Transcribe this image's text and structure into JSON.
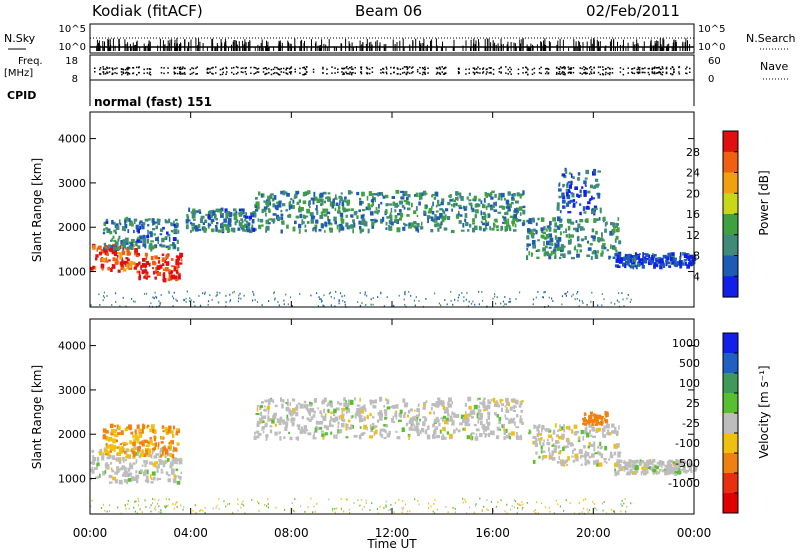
{
  "header": {
    "station": "Kodiak (fitACF)",
    "beam": "Beam 06",
    "date": "02/Feb/2011"
  },
  "top_panels": {
    "nsky_label": "N.Sky",
    "nsky_ticks": [
      "10^5",
      "10^0"
    ],
    "nsearch_label": "N.Search",
    "freq_label_1": "Freq.",
    "freq_label_2": "[MHz]",
    "freq_ticks": [
      "18",
      "8"
    ],
    "nave_label": "Nave",
    "nave_ticks": [
      "60",
      "0"
    ],
    "cpid_label": "CPID",
    "cpid_value": "normal (fast) 151"
  },
  "colors": {
    "power": [
      "#1020e8",
      "#1e5bb4",
      "#3f8a78",
      "#40a040",
      "#c8d818",
      "#f0a010",
      "#ef6010",
      "#e01010"
    ],
    "velocity": [
      "#1020e8",
      "#2060c0",
      "#3f9a5a",
      "#58c030",
      "#bdbdbd",
      "#f0c010",
      "#f08010",
      "#e83010",
      "#e00000"
    ]
  },
  "chart_data": [
    {
      "type": "heatmap",
      "name": "power",
      "xlabel": "Time UT",
      "ylabel": "Slant Range [km]",
      "xlim": [
        0,
        24
      ],
      "ylim": [
        200,
        4600
      ],
      "x_ticks": [
        "00:00",
        "04:00",
        "08:00",
        "12:00",
        "16:00",
        "20:00",
        "00:00"
      ],
      "y_ticks": [
        1000,
        2000,
        3000,
        4000
      ],
      "colorbar_label": "Power [dB]",
      "colorbar_ticks": [
        4,
        8,
        12,
        16,
        20,
        24,
        28
      ],
      "clim": [
        0,
        30
      ],
      "echo_bands": [
        {
          "t_start": 0.0,
          "t_end": 1.8,
          "range_low": 1000,
          "range_high": 1600,
          "power": 26
        },
        {
          "t_start": 1.8,
          "t_end": 3.6,
          "range_low": 800,
          "range_high": 1400,
          "power": 28
        },
        {
          "t_start": 0.5,
          "t_end": 3.5,
          "range_low": 1500,
          "range_high": 2200,
          "power": 8
        },
        {
          "t_start": 3.8,
          "t_end": 6.5,
          "range_low": 1900,
          "range_high": 2400,
          "power": 8
        },
        {
          "t_start": 6.5,
          "t_end": 17.2,
          "range_low": 1900,
          "range_high": 2800,
          "power": 10
        },
        {
          "t_start": 17.3,
          "t_end": 21.0,
          "range_low": 1300,
          "range_high": 2200,
          "power": 10
        },
        {
          "t_start": 18.5,
          "t_end": 20.3,
          "range_low": 2300,
          "range_high": 3300,
          "power": 6
        },
        {
          "t_start": 20.8,
          "t_end": 24.0,
          "range_low": 1100,
          "range_high": 1400,
          "power": 4
        }
      ]
    },
    {
      "type": "heatmap",
      "name": "velocity",
      "xlabel": "Time UT",
      "ylabel": "Slant Range [km]",
      "xlim": [
        0,
        24
      ],
      "ylim": [
        200,
        4600
      ],
      "x_ticks": [
        "00:00",
        "04:00",
        "08:00",
        "12:00",
        "16:00",
        "20:00",
        "00:00"
      ],
      "y_ticks": [
        1000,
        2000,
        3000,
        4000
      ],
      "colorbar_label": "Velocity [m s⁻¹]",
      "colorbar_ticks": [
        1000,
        500,
        100,
        25,
        -25,
        -100,
        -500,
        -1000
      ],
      "clim": [
        -1000,
        1000
      ],
      "echo_bands": [
        {
          "t_start": 0.0,
          "t_end": 3.6,
          "range_low": 900,
          "range_high": 1700,
          "velocity": 0
        },
        {
          "t_start": 0.5,
          "t_end": 3.5,
          "range_low": 1500,
          "range_high": 2200,
          "velocity": -100
        },
        {
          "t_start": 6.5,
          "t_end": 17.2,
          "range_low": 1900,
          "range_high": 2800,
          "velocity": 0
        },
        {
          "t_start": 17.3,
          "t_end": 21.0,
          "range_low": 1300,
          "range_high": 2200,
          "velocity": 0
        },
        {
          "t_start": 19.5,
          "t_end": 20.5,
          "range_low": 2200,
          "range_high": 2500,
          "velocity": -300
        },
        {
          "t_start": 20.8,
          "t_end": 24.0,
          "range_low": 1100,
          "range_high": 1400,
          "velocity": 0
        }
      ]
    }
  ]
}
